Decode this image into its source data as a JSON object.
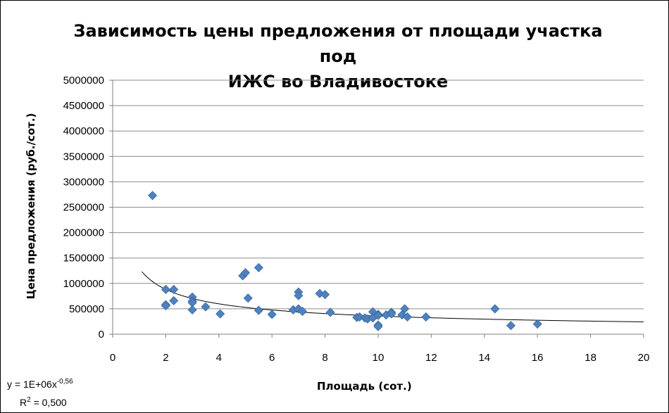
{
  "chart_data": {
    "type": "scatter",
    "title_line1": "Зависимость цены предложения от площади участка под",
    "title_line2": "ИЖС во Владивостоке",
    "xlabel": "Площадь (сот.)",
    "ylabel": "Цена предложения (руб./сот.)",
    "xlim": [
      0,
      20
    ],
    "ylim": [
      0,
      5000000
    ],
    "x_ticks": [
      "0",
      "2",
      "4",
      "6",
      "8",
      "10",
      "12",
      "14",
      "16",
      "18",
      "20"
    ],
    "y_ticks": [
      "0",
      "500000",
      "1000000",
      "1500000",
      "2000000",
      "2500000",
      "3000000",
      "3500000",
      "4000000",
      "4500000",
      "5000000"
    ],
    "grid": "horizontal",
    "marker_color": "#4F81BD",
    "trendline": {
      "type": "power",
      "a": 1300000,
      "b": -0.56,
      "x_range": [
        1.1,
        20
      ],
      "equation_prefix": "y = 1E+06x",
      "equation_exponent": "-0,56",
      "r2_prefix": "R",
      "r2_sup": "2",
      "r2_suffix": " = 0,500"
    },
    "points": [
      [
        1.5,
        2730000
      ],
      [
        2.0,
        880000
      ],
      [
        2.0,
        580000
      ],
      [
        2.0,
        560000
      ],
      [
        2.3,
        880000
      ],
      [
        2.3,
        660000
      ],
      [
        3.0,
        730000
      ],
      [
        3.0,
        650000
      ],
      [
        3.0,
        620000
      ],
      [
        3.0,
        480000
      ],
      [
        3.5,
        540000
      ],
      [
        4.05,
        400000
      ],
      [
        4.9,
        1150000
      ],
      [
        5.0,
        1210000
      ],
      [
        5.1,
        710000
      ],
      [
        5.5,
        1310000
      ],
      [
        5.5,
        470000
      ],
      [
        6.0,
        390000
      ],
      [
        6.8,
        480000
      ],
      [
        7.0,
        830000
      ],
      [
        7.0,
        760000
      ],
      [
        7.0,
        500000
      ],
      [
        7.15,
        450000
      ],
      [
        7.8,
        800000
      ],
      [
        8.0,
        780000
      ],
      [
        8.2,
        430000
      ],
      [
        9.2,
        330000
      ],
      [
        9.3,
        340000
      ],
      [
        9.5,
        320000
      ],
      [
        9.6,
        300000
      ],
      [
        9.8,
        440000
      ],
      [
        9.8,
        320000
      ],
      [
        10.0,
        390000
      ],
      [
        10.0,
        370000
      ],
      [
        10.0,
        180000
      ],
      [
        10.0,
        150000
      ],
      [
        10.3,
        380000
      ],
      [
        10.5,
        430000
      ],
      [
        10.5,
        400000
      ],
      [
        10.9,
        380000
      ],
      [
        11.0,
        500000
      ],
      [
        11.1,
        340000
      ],
      [
        11.8,
        340000
      ],
      [
        14.4,
        500000
      ],
      [
        15.0,
        170000
      ],
      [
        16.0,
        200000
      ]
    ]
  }
}
